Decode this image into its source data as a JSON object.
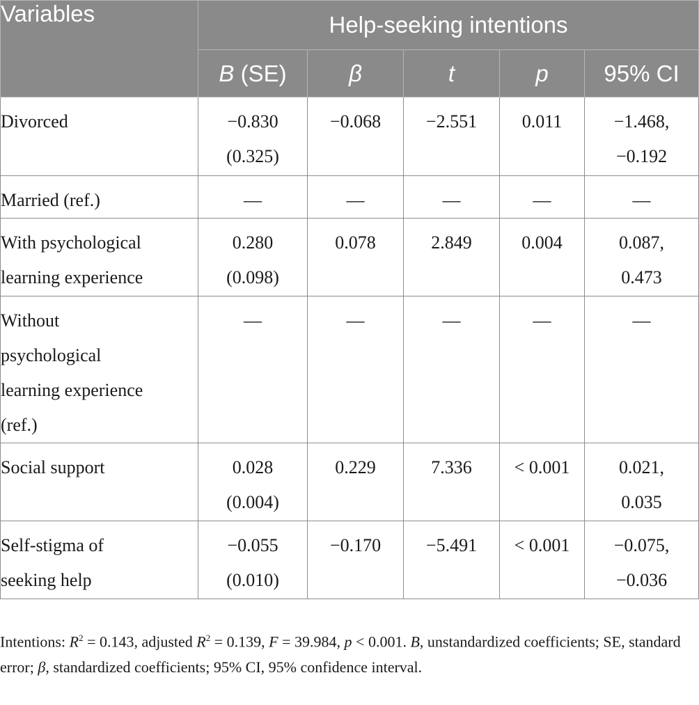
{
  "table": {
    "header": {
      "variables": "Variables",
      "group": "Help-seeking intentions",
      "columns": [
        {
          "label": "B",
          "suffix": " (SE)"
        },
        {
          "label": "β",
          "suffix": ""
        },
        {
          "label": "t",
          "suffix": ""
        },
        {
          "label": "p",
          "suffix": ""
        },
        {
          "label": "95% CI",
          "suffix": ""
        }
      ]
    },
    "rows": [
      {
        "variable": [
          "Divorced"
        ],
        "b": "−0.830",
        "se": "(0.325)",
        "beta": "−0.068",
        "t": "−2.551",
        "p": "0.011",
        "ci_low": "−1.468,",
        "ci_high": "−0.192"
      },
      {
        "variable": [
          "Married (ref.)"
        ],
        "b": "—",
        "se": "",
        "beta": "—",
        "t": "—",
        "p": "—",
        "ci_low": "—",
        "ci_high": ""
      },
      {
        "variable": [
          "With psychological",
          "learning experience"
        ],
        "b": "0.280",
        "se": "(0.098)",
        "beta": "0.078",
        "t": "2.849",
        "p": "0.004",
        "ci_low": "0.087,",
        "ci_high": "0.473"
      },
      {
        "variable": [
          "Without",
          "psychological",
          "learning experience",
          "(ref.)"
        ],
        "b": "—",
        "se": "",
        "beta": "—",
        "t": "—",
        "p": "—",
        "ci_low": "—",
        "ci_high": ""
      },
      {
        "variable": [
          "Social support"
        ],
        "b": "0.028",
        "se": "(0.004)",
        "beta": "0.229",
        "t": "7.336",
        "p": "< 0.001",
        "ci_low": "0.021,",
        "ci_high": "0.035"
      },
      {
        "variable": [
          "Self-stigma of",
          "seeking help"
        ],
        "b": "−0.055",
        "se": "(0.010)",
        "beta": "−0.170",
        "t": "−5.491",
        "p": "< 0.001",
        "ci_low": "−0.075,",
        "ci_high": "−0.036"
      }
    ]
  },
  "note": {
    "lead": "Intentions: ",
    "r2_label": "R",
    "r2_sup": "2",
    "r2_value": " = 0.143, adjusted ",
    "adj_r2_label": "R",
    "adj_r2_sup": "2",
    "adj_r2_value": " = 0.139, ",
    "f_label": "F",
    "f_value": " = 39.984, ",
    "p_label": "p",
    "p_value": " < 0.001. ",
    "b_label": "B",
    "b_text": ", unstandardized coefficients; SE, standard error; ",
    "beta_label": "β",
    "beta_text": ", standardized coefficients; 95% CI, 95% confidence interval."
  }
}
